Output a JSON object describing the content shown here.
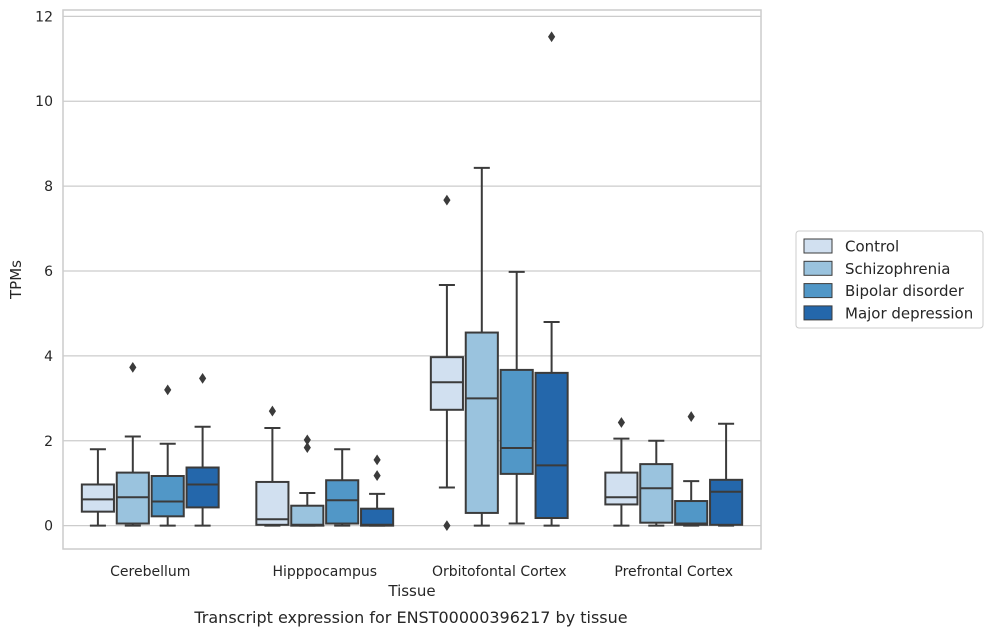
{
  "chart_data": {
    "type": "boxplot",
    "caption": "Transcript expression for ENST00000396217 by tissue",
    "xlabel": "Tissue",
    "ylabel": "TPMs",
    "ylim": [
      -0.55,
      12.15
    ],
    "yticks": [
      0,
      2,
      4,
      6,
      8,
      10,
      12
    ],
    "grid": true,
    "legend_position": "right",
    "categories": [
      "Cerebellum",
      "Hipppocampus",
      "Orbitofontal Cortex",
      "Prefrontal Cortex"
    ],
    "series": [
      {
        "name": "Control",
        "color": "#d1e0f0",
        "boxes": [
          {
            "whisker_low": 0.0,
            "q1": 0.33,
            "median": 0.62,
            "q3": 0.97,
            "whisker_high": 1.8,
            "outliers": []
          },
          {
            "whisker_low": 0.0,
            "q1": 0.02,
            "median": 0.15,
            "q3": 1.03,
            "whisker_high": 2.3,
            "outliers": [
              2.7
            ]
          },
          {
            "whisker_low": 0.9,
            "q1": 2.73,
            "median": 3.38,
            "q3": 3.97,
            "whisker_high": 5.67,
            "outliers": [
              7.67,
              0.0
            ]
          },
          {
            "whisker_low": 0.0,
            "q1": 0.5,
            "median": 0.67,
            "q3": 1.25,
            "whisker_high": 2.05,
            "outliers": [
              2.43
            ]
          }
        ]
      },
      {
        "name": "Schizophrenia",
        "color": "#9ac3de",
        "boxes": [
          {
            "whisker_low": 0.0,
            "q1": 0.05,
            "median": 0.67,
            "q3": 1.25,
            "whisker_high": 2.1,
            "outliers": [
              3.73
            ]
          },
          {
            "whisker_low": 0.0,
            "q1": 0.0,
            "median": 0.02,
            "q3": 0.47,
            "whisker_high": 0.77,
            "outliers": [
              2.02,
              1.84
            ]
          },
          {
            "whisker_low": 0.0,
            "q1": 0.3,
            "median": 3.0,
            "q3": 4.55,
            "whisker_high": 8.43,
            "outliers": []
          },
          {
            "whisker_low": 0.0,
            "q1": 0.07,
            "median": 0.88,
            "q3": 1.45,
            "whisker_high": 2.0,
            "outliers": []
          }
        ]
      },
      {
        "name": "Bipolar disorder",
        "color": "#5197c7",
        "boxes": [
          {
            "whisker_low": 0.0,
            "q1": 0.22,
            "median": 0.57,
            "q3": 1.17,
            "whisker_high": 1.93,
            "outliers": [
              3.2
            ]
          },
          {
            "whisker_low": 0.0,
            "q1": 0.05,
            "median": 0.6,
            "q3": 1.07,
            "whisker_high": 1.8,
            "outliers": []
          },
          {
            "whisker_low": 0.05,
            "q1": 1.22,
            "median": 1.83,
            "q3": 3.67,
            "whisker_high": 5.98,
            "outliers": []
          },
          {
            "whisker_low": 0.0,
            "q1": 0.02,
            "median": 0.05,
            "q3": 0.58,
            "whisker_high": 1.05,
            "outliers": [
              2.57
            ]
          }
        ]
      },
      {
        "name": "Major depression",
        "color": "#2467ab",
        "boxes": [
          {
            "whisker_low": 0.0,
            "q1": 0.43,
            "median": 0.97,
            "q3": 1.37,
            "whisker_high": 2.33,
            "outliers": [
              3.47
            ]
          },
          {
            "whisker_low": 0.0,
            "q1": 0.0,
            "median": 0.02,
            "q3": 0.4,
            "whisker_high": 0.75,
            "outliers": [
              1.55,
              1.18
            ]
          },
          {
            "whisker_low": 0.0,
            "q1": 0.18,
            "median": 1.42,
            "q3": 3.6,
            "whisker_high": 4.8,
            "outliers": [
              11.52
            ]
          },
          {
            "whisker_low": 0.0,
            "q1": 0.02,
            "median": 0.8,
            "q3": 1.08,
            "whisker_high": 2.4,
            "outliers": []
          }
        ]
      }
    ]
  }
}
